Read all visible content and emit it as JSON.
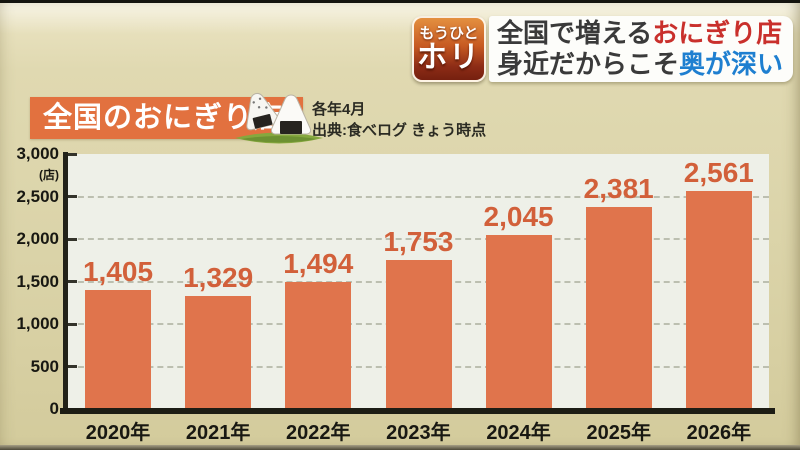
{
  "header": {
    "badge": {
      "line1": "もうひと",
      "line2": "ホリ"
    },
    "headline": {
      "line1_plain": "全国で増える",
      "line1_highlight": "おにぎり店",
      "line2_plain": "身近だからこそ",
      "line2_highlight": "奥が深い"
    }
  },
  "title_banner": {
    "text": "全国のおにぎり店"
  },
  "source_note": {
    "line1": "各年4月",
    "line2": "出典:食べログ きょう時点"
  },
  "chart_data": {
    "type": "bar",
    "title": "全国のおにぎり店",
    "unit_label": "(店)",
    "categories": [
      "2020年",
      "2021年",
      "2022年",
      "2023年",
      "2024年",
      "2025年",
      "2026年"
    ],
    "values": [
      1405,
      1329,
      1494,
      1753,
      2045,
      2381,
      2561
    ],
    "value_labels": [
      "1,405",
      "1,329",
      "1,494",
      "1,753",
      "2,045",
      "2,381",
      "2,561"
    ],
    "ylim": [
      0,
      3000
    ],
    "ytick_interval": 500,
    "ytick_labels": [
      "0",
      "500",
      "1,000",
      "1,500",
      "2,000",
      "2,500",
      "3,000"
    ],
    "grid": "dashed horizontal, gridlines at 500–2500",
    "legend": "none",
    "bar_color": "#e0744c",
    "value_label_color": "#d2603a"
  },
  "colors": {
    "background": "#dcd5ab",
    "plot_background": "#eef0e8",
    "banner_orange": "#e2713f",
    "headline_red": "#c9302c",
    "headline_blue": "#1e7fd0",
    "axis": "#1d1d15"
  }
}
